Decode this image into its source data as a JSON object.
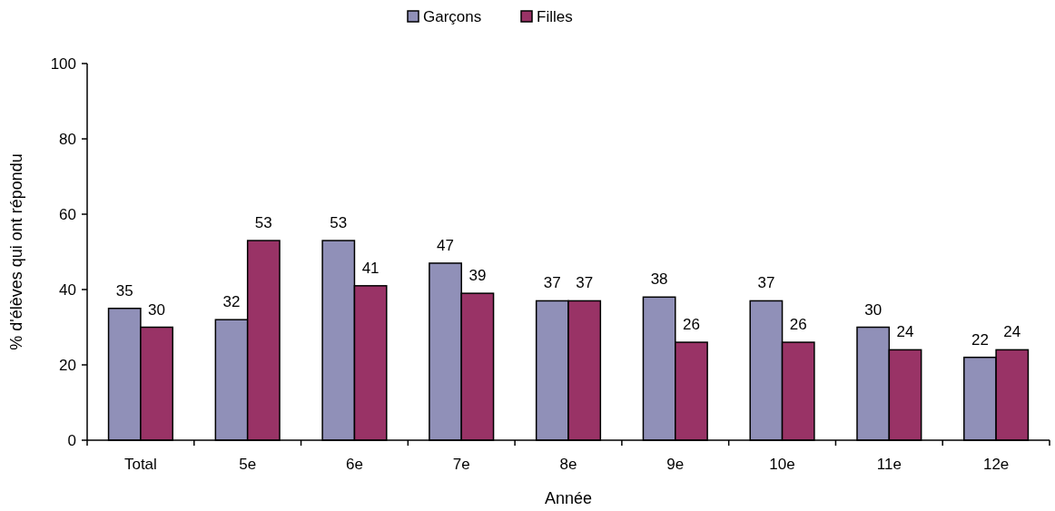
{
  "chart_data": {
    "type": "bar",
    "xlabel": "Année",
    "ylabel": "% d'élèves qui ont répondu",
    "categories": [
      "Total",
      "5e",
      "6e",
      "7e",
      "8e",
      "9e",
      "10e",
      "11e",
      "12e"
    ],
    "series": [
      {
        "name": "Garçons",
        "color": "#9090b8",
        "values": [
          35,
          32,
          53,
          47,
          37,
          38,
          37,
          30,
          22
        ]
      },
      {
        "name": "Filles",
        "color": "#993366",
        "values": [
          30,
          53,
          41,
          39,
          37,
          26,
          26,
          24,
          24
        ]
      }
    ],
    "ylim": [
      0,
      100
    ],
    "yticks": [
      0,
      20,
      40,
      60,
      80,
      100
    ],
    "grid": false,
    "legend": "top",
    "data_labels": true
  }
}
